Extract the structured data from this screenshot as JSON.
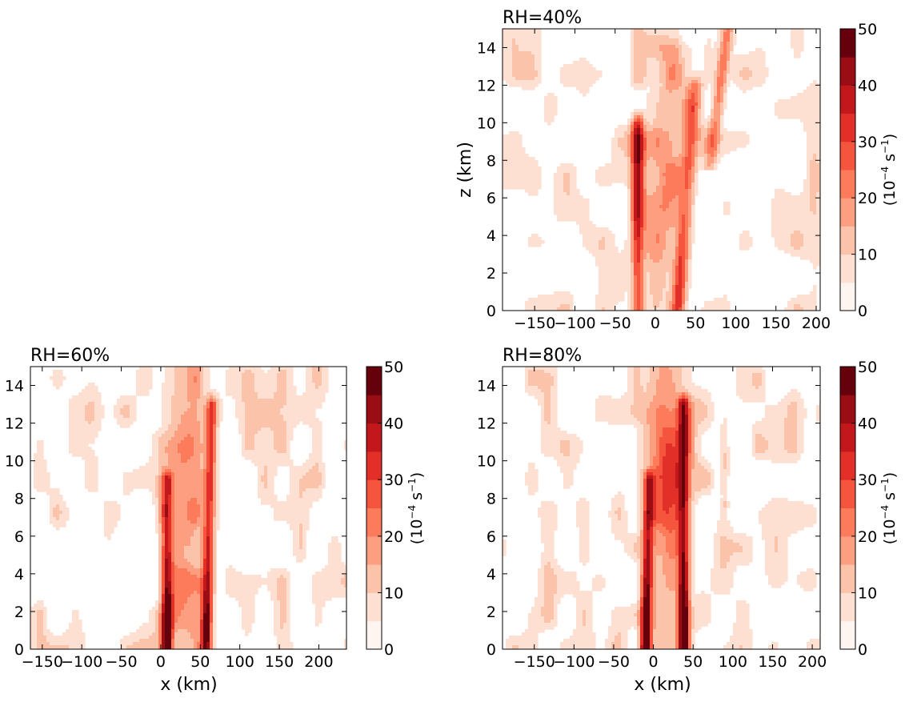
{
  "chart_data": [
    {
      "type": "heatmap",
      "subtype": "filled-contour",
      "title": "RH=40%",
      "xlabel": "",
      "ylabel": "z (km)",
      "xlim": [
        -190,
        205
      ],
      "ylim": [
        0,
        15
      ],
      "xticks": [
        -150,
        -100,
        -50,
        0,
        50,
        100,
        150,
        200
      ],
      "yticks": [
        0,
        2,
        4,
        6,
        8,
        10,
        12,
        14
      ],
      "colorbar": {
        "label": "(10$^{-4}$ s$^{-1}$)",
        "ticks": [
          0,
          10,
          20,
          30,
          40,
          50
        ],
        "levels": [
          0,
          5,
          10,
          15,
          20,
          25,
          30,
          35,
          40,
          45,
          50
        ]
      },
      "features": [
        {
          "x": -22,
          "zmin": 0,
          "zmax": 10,
          "peak": 38,
          "width": 8,
          "tilt": 0,
          "peak_z": 7
        },
        {
          "x": 28,
          "zmin": 0,
          "zmax": 12,
          "peak": 30,
          "width": 9,
          "tilt": 1.8,
          "peak_z": 1
        },
        {
          "x": 0,
          "zmin": 0,
          "zmax": 14,
          "peak": 16,
          "width": 28,
          "tilt": 1.5,
          "peak_z": 8
        },
        {
          "x": 45,
          "zmin": 8,
          "zmax": 15,
          "peak": 22,
          "width": 8,
          "tilt": 3,
          "peak_z": 13
        }
      ]
    },
    {
      "type": "heatmap",
      "subtype": "filled-contour",
      "title": "RH=60%",
      "xlabel": "x (km)",
      "ylabel": "",
      "xlim": [
        -165,
        235
      ],
      "ylim": [
        0,
        15
      ],
      "xticks": [
        -150,
        -100,
        -50,
        0,
        50,
        100,
        150,
        200
      ],
      "yticks": [
        0,
        2,
        4,
        6,
        8,
        10,
        12,
        14
      ],
      "colorbar": {
        "label": "(10$^{-4}$ s$^{-1}$)",
        "ticks": [
          0,
          10,
          20,
          30,
          40,
          50
        ],
        "levels": [
          0,
          5,
          10,
          15,
          20,
          25,
          30,
          35,
          40,
          45,
          50
        ]
      },
      "features": [
        {
          "x": 8,
          "zmin": 0,
          "zmax": 9,
          "peak": 48,
          "width": 7,
          "tilt": 0,
          "peak_z": 0.5
        },
        {
          "x": 57,
          "zmin": 0,
          "zmax": 13,
          "peak": 46,
          "width": 7,
          "tilt": 0.6,
          "peak_z": 0.5
        },
        {
          "x": 32,
          "zmin": 0,
          "zmax": 15,
          "peak": 20,
          "width": 30,
          "tilt": 0,
          "peak_z": 9
        }
      ]
    },
    {
      "type": "heatmap",
      "subtype": "filled-contour",
      "title": "RH=80%",
      "xlabel": "x (km)",
      "ylabel": "",
      "xlim": [
        -190,
        210
      ],
      "ylim": [
        0,
        15
      ],
      "xticks": [
        -150,
        -100,
        -50,
        0,
        50,
        100,
        150,
        200
      ],
      "yticks": [
        0,
        2,
        4,
        6,
        8,
        10,
        12,
        14
      ],
      "colorbar": {
        "label": "(10$^{-4}$ s$^{-1}$)",
        "ticks": [
          0,
          10,
          20,
          30,
          40,
          50
        ],
        "levels": [
          0,
          5,
          10,
          15,
          20,
          25,
          30,
          35,
          40,
          45,
          50
        ]
      },
      "features": [
        {
          "x": -10,
          "zmin": 0,
          "zmax": 9,
          "peak": 48,
          "width": 7,
          "tilt": 0.5,
          "peak_z": 0.5
        },
        {
          "x": 38,
          "zmin": 0,
          "zmax": 13,
          "peak": 50,
          "width": 7,
          "tilt": 0,
          "peak_z": 1
        },
        {
          "x": 15,
          "zmin": 0,
          "zmax": 15,
          "peak": 24,
          "width": 30,
          "tilt": 0,
          "peak_z": 10
        },
        {
          "x": 90,
          "zmin": 8,
          "zmax": 12,
          "peak": 10,
          "width": 5,
          "tilt": 0,
          "peak_z": 10
        }
      ]
    }
  ],
  "colors": {
    "levels": [
      "#fff5f0",
      "#fee0d2",
      "#fcc3ab",
      "#fc9f81",
      "#fb7b5b",
      "#f5553d",
      "#e23028",
      "#c2181c",
      "#9b0d14",
      "#67000d"
    ]
  }
}
